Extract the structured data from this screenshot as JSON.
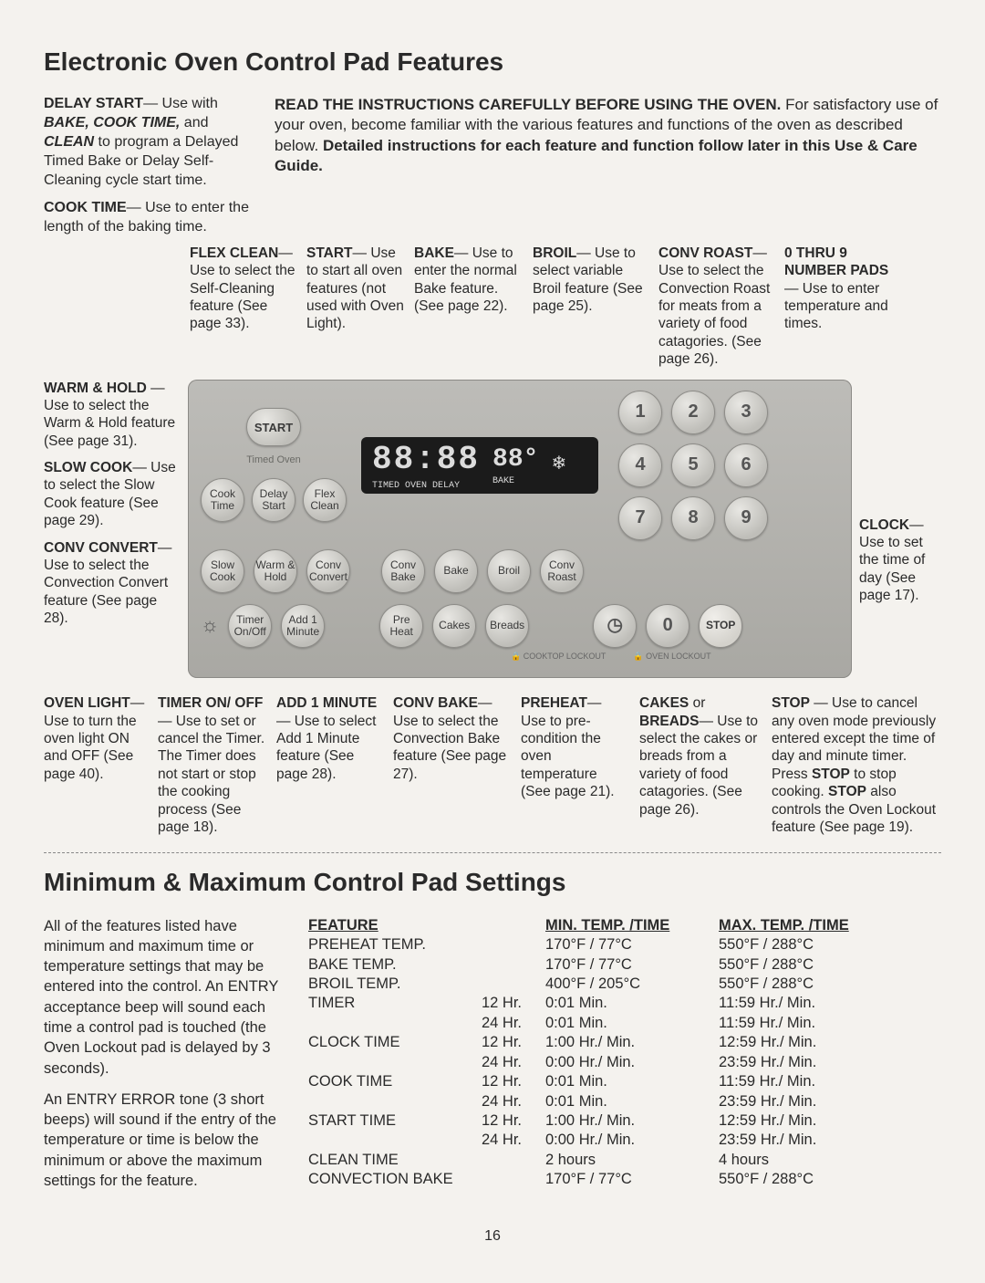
{
  "page": {
    "title1": "Electronic Oven Control Pad Features",
    "title2": "Minimum & Maximum Control Pad Settings",
    "page_number": "16"
  },
  "intro": {
    "left_bold1": "DELAY START",
    "left_txt1": "— Use with ",
    "left_bold2": "BAKE, COOK TIME,",
    "left_txt2": " and ",
    "left_bold3": "CLEAN",
    "left_txt3": " to program a Delayed Timed Bake or Delay Self-Cleaning cycle start time.",
    "left_bold4": "COOK TIME",
    "left_txt4": "— Use to enter the length of the baking time.",
    "right_bold1": "READ THE INSTRUCTIONS CAREFULLY BEFORE USING THE OVEN.",
    "right_txt1": " For satisfactory use of your oven, become familiar with the various features and functions of the oven as described below. ",
    "right_bold2": "Detailed instructions for each feature and function follow later in this Use & Care Guide."
  },
  "top_callouts": {
    "flex": {
      "h": "FLEX CLEAN",
      "t": "— Use to select the Self-Cleaning feature (See page 33)."
    },
    "start": {
      "h": "START",
      "t": "— Use to start all oven features (not used with Oven Light)."
    },
    "bake": {
      "h": "BAKE",
      "t": "— Use to enter the normal Bake feature. (See page 22)."
    },
    "broil": {
      "h": "BROIL",
      "t": "— Use to select variable Broil feature (See page 25)."
    },
    "convroast": {
      "h": "CONV ROAST",
      "t": "— Use to select the Convection Roast for meats from a variety of food catagories. (See page 26)."
    },
    "numpads": {
      "h": "0 THRU 9 NUMBER PADS",
      "t": "— Use to enter temperature and times."
    }
  },
  "left_labels": {
    "warm": {
      "h": "WARM & HOLD",
      "t": " — Use to select the Warm & Hold feature (See page 31)."
    },
    "slow": {
      "h": "SLOW COOK",
      "t": "— Use to select the Slow Cook feature (See page 29)."
    },
    "conv": {
      "h": "CONV CONVERT",
      "t": "— Use to select the Convection Convert feature (See page 28)."
    }
  },
  "right_label": {
    "h": "CLOCK",
    "t": "— Use to set the time of day (See page 17)."
  },
  "panel": {
    "timed_label": "Timed Oven",
    "start": "START",
    "cook_time": "Cook Time",
    "delay_start": "Delay Start",
    "flex_clean": "Flex Clean",
    "slow_cook": "Slow Cook",
    "warm_hold": "Warm & Hold",
    "conv_convert": "Conv Convert",
    "conv_bake": "Conv Bake",
    "bake": "Bake",
    "broil": "Broil",
    "conv_roast": "Conv Roast",
    "timer": "Timer On/Off",
    "add1": "Add 1 Minute",
    "preheat": "Pre Heat",
    "cakes": "Cakes",
    "breads": "Breads",
    "clock_icon": "◷",
    "zero": "0",
    "stop": "STOP",
    "lcd_time": "88:88",
    "lcd_deg": "88°",
    "lcd_snow": "❄",
    "lcd_small_top": "TIMED OVEN DELAY",
    "lcd_small_bot": "BAKE",
    "nums": [
      "1",
      "2",
      "3",
      "4",
      "5",
      "6",
      "7",
      "8",
      "9"
    ],
    "lockout1": "🔒 COOKTOP LOCKOUT",
    "lockout2": "🔒 OVEN LOCKOUT"
  },
  "bottom_callouts": {
    "ovenlight": {
      "h": "OVEN LIGHT",
      "t": "— Use to turn the oven light ON and OFF (See page 40)."
    },
    "timer": {
      "h": "TIMER ON/ OFF",
      "t": "— Use to set or cancel the Timer. The Timer does not start or stop the cooking process (See page 18)."
    },
    "add1": {
      "h": "ADD 1 MINUTE",
      "t": "— Use to select Add 1 Minute feature (See page 28)."
    },
    "convbake": {
      "h": "CONV BAKE",
      "t": "— Use to select the Convection Bake feature (See page 27)."
    },
    "preheat": {
      "h": "PREHEAT",
      "t": "— Use to pre-condition the oven temperature (See page 21)."
    },
    "cakes": {
      "h": "CAKES",
      "t1": " or ",
      "h2": "BREADS",
      "t": "— Use to select the cakes or breads from a variety of food catagories. (See page 26)."
    },
    "stop": {
      "h": "STOP",
      "t": " — Use to cancel any oven mode previously entered except the time of day and minute timer. Press ",
      "h2": "STOP",
      "t2": " to stop cooking. ",
      "h3": "STOP",
      "t3": " also controls the Oven Lockout feature (See page 19)."
    }
  },
  "settings_text": {
    "p1": "All of the features listed have minimum and maximum time or temperature settings that may be entered into the control. An ENTRY acceptance beep will sound each time a control pad is touched (the Oven Lockout pad is delayed by 3 seconds).",
    "p2": "An ENTRY ERROR tone (3 short beeps) will sound if the entry of the temperature or time is below the minimum or above the maximum settings for the feature."
  },
  "table": {
    "headers": {
      "c1": "FEATURE",
      "c3": "MIN. TEMP. /TIME",
      "c4": "MAX. TEMP. /TIME"
    },
    "rows": [
      {
        "c1": "PREHEAT TEMP.",
        "c2": "",
        "c3": "170°F / 77°C",
        "c4": "550°F / 288°C"
      },
      {
        "c1": "BAKE TEMP.",
        "c2": "",
        "c3": "170°F / 77°C",
        "c4": "550°F / 288°C"
      },
      {
        "c1": "BROIL TEMP.",
        "c2": "",
        "c3": "400°F / 205°C",
        "c4": "550°F / 288°C"
      },
      {
        "c1": "TIMER",
        "c2": "12 Hr.",
        "c3": "0:01 Min.",
        "c4": "11:59 Hr./ Min."
      },
      {
        "c1": "",
        "c2": "24 Hr.",
        "c3": "0:01 Min.",
        "c4": "11:59 Hr./ Min."
      },
      {
        "c1": "CLOCK TIME",
        "c2": "12 Hr.",
        "c3": "1:00 Hr./ Min.",
        "c4": "12:59 Hr./ Min."
      },
      {
        "c1": "",
        "c2": "24 Hr.",
        "c3": "0:00 Hr./ Min.",
        "c4": "23:59 Hr./ Min."
      },
      {
        "c1": "COOK TIME",
        "c2": "12 Hr.",
        "c3": "0:01 Min.",
        "c4": "11:59 Hr./ Min."
      },
      {
        "c1": "",
        "c2": "24 Hr.",
        "c3": "0:01 Min.",
        "c4": "23:59 Hr./ Min."
      },
      {
        "c1": "START TIME",
        "c2": "12 Hr.",
        "c3": "1:00 Hr./ Min.",
        "c4": "12:59 Hr./ Min."
      },
      {
        "c1": "",
        "c2": "24 Hr.",
        "c3": "0:00 Hr./ Min.",
        "c4": "23:59 Hr./ Min."
      },
      {
        "c1": "CLEAN TIME",
        "c2": "",
        "c3": "2 hours",
        "c4": "4 hours"
      },
      {
        "c1": "CONVECTION BAKE",
        "c2": "",
        "c3": "170°F / 77°C",
        "c4": "550°F / 288°C"
      }
    ]
  }
}
